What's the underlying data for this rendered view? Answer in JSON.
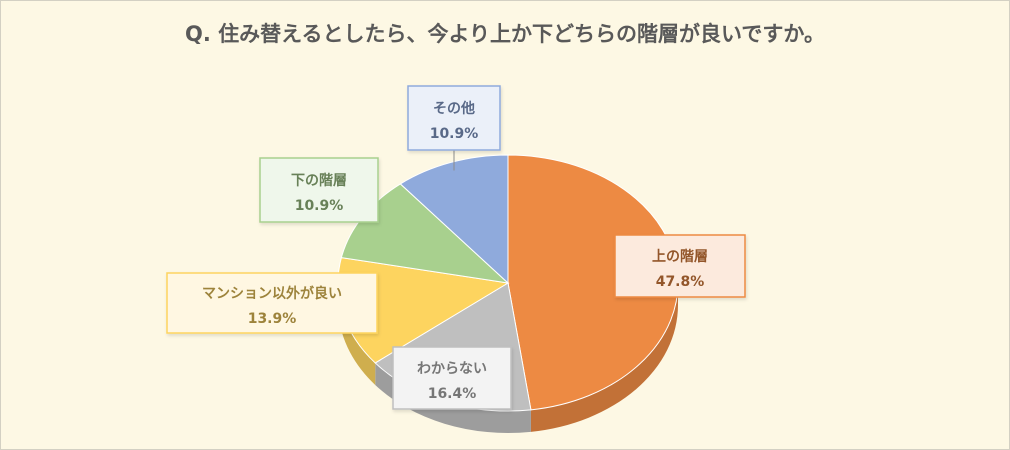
{
  "chart_data": {
    "type": "pie",
    "title": "Q. 住み替えるとしたら、今より上か下どちらの階層が良いですか。",
    "unit": "%",
    "slices": [
      {
        "label": "上の階層",
        "value": 47.8,
        "value_label": "47.8%",
        "color": "#ed8a43"
      },
      {
        "label": "わからない",
        "value": 16.4,
        "value_label": "16.4%",
        "color": "#bfbfbf"
      },
      {
        "label": "マンション以外が良い",
        "value": 13.9,
        "value_label": "13.9%",
        "color": "#fdd45f"
      },
      {
        "label": "下の階層",
        "value": 10.9,
        "value_label": "10.9%",
        "color": "#a8d08e"
      },
      {
        "label": "その他",
        "value": 10.9,
        "value_label": "10.9%",
        "color": "#8faadc"
      }
    ],
    "legend": "none",
    "data_labels": "callout"
  }
}
